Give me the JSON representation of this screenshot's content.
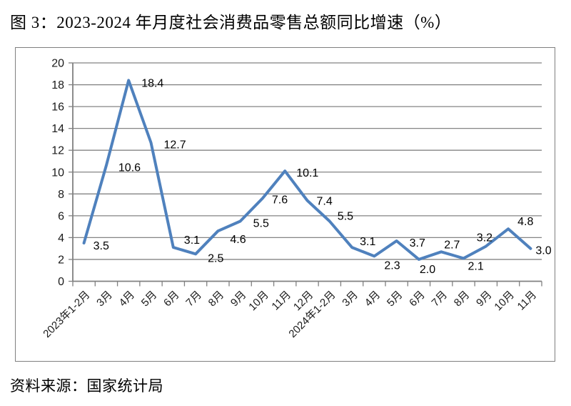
{
  "figure": {
    "title": "图 3：2023-2024 年月度社会消费品零售总额同比增速（%）",
    "source": "资料来源：国家统计局"
  },
  "chart_data": {
    "type": "line",
    "title": "2023-2024 年月度社会消费品零售总额同比增速（%）",
    "categories": [
      "2023年1-2月",
      "3月",
      "4月",
      "5月",
      "6月",
      "7月",
      "8月",
      "9月",
      "10月",
      "11月",
      "12月",
      "2024年1-2月",
      "3月",
      "4月",
      "5月",
      "6月",
      "7月",
      "8月",
      "9月",
      "10月",
      "11月"
    ],
    "values": [
      3.5,
      10.6,
      18.4,
      12.7,
      3.1,
      2.5,
      4.6,
      5.5,
      7.6,
      10.1,
      7.4,
      5.5,
      3.1,
      2.3,
      3.7,
      2.0,
      2.7,
      2.1,
      3.2,
      4.8,
      3.0
    ],
    "xlabel": "",
    "ylabel": "",
    "ylim": [
      0,
      20
    ],
    "ytick_step": 2,
    "grid": true,
    "legend": "none",
    "data_labels": true,
    "label_decimals": 1,
    "colors": {
      "line": "#4F81BD",
      "gridline": "#848484",
      "axis": "#808080",
      "tick_label": "#1a1a1a",
      "data_label": "#000000"
    }
  }
}
